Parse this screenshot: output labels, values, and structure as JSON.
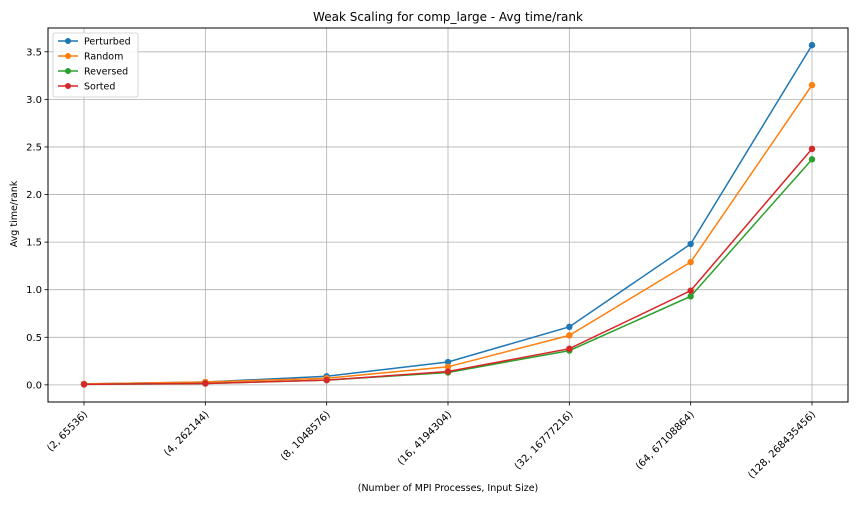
{
  "chart_data": {
    "type": "line",
    "title": "Weak Scaling for comp_large - Avg time/rank",
    "xlabel": "(Number of MPI Processes, Input Size)",
    "ylabel": "Avg time/rank",
    "categories": [
      "(2, 65536)",
      "(4, 262144)",
      "(8, 1048576)",
      "(16, 4194304)",
      "(32, 16777216)",
      "(64, 67108864)",
      "(128, 268435456)"
    ],
    "yticks": [
      "0.0",
      "0.5",
      "1.0",
      "1.5",
      "2.0",
      "2.5",
      "3.0",
      "3.5"
    ],
    "ylim": [
      -0.18,
      3.75
    ],
    "grid": true,
    "legend_position": "upper-left",
    "series": [
      {
        "name": "Perturbed",
        "color": "#1f77b4",
        "values": [
          0.01,
          0.03,
          0.09,
          0.24,
          0.61,
          1.48,
          3.57
        ]
      },
      {
        "name": "Random",
        "color": "#ff7f0e",
        "values": [
          0.01,
          0.03,
          0.07,
          0.19,
          0.52,
          1.29,
          3.15
        ]
      },
      {
        "name": "Reversed",
        "color": "#2ca02c",
        "values": [
          0.005,
          0.015,
          0.05,
          0.13,
          0.36,
          0.93,
          2.37
        ]
      },
      {
        "name": "Sorted",
        "color": "#d62728",
        "values": [
          0.005,
          0.015,
          0.05,
          0.14,
          0.38,
          0.99,
          2.48
        ]
      }
    ]
  }
}
